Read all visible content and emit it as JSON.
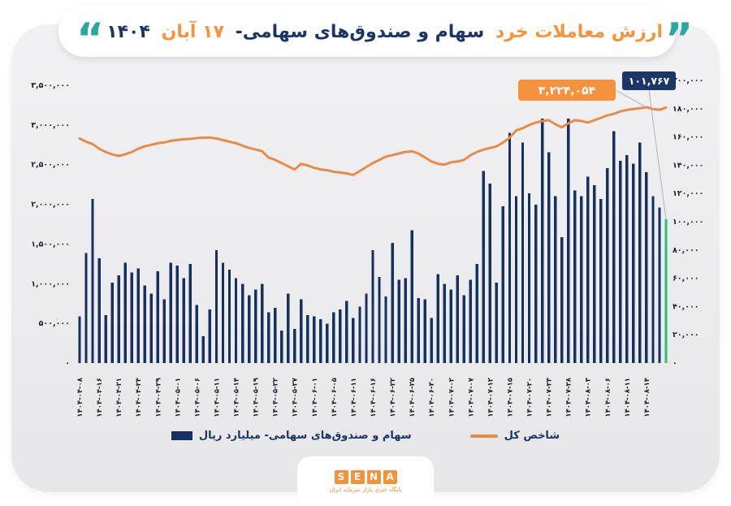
{
  "title": {
    "part1": "ارزش معاملات خرد",
    "part2": "سهام و صندوق‌های سهامی-",
    "part3": "۱۷ آبان",
    "part4": "۱۴۰۴"
  },
  "colors": {
    "bar": "#16305f",
    "last_bar": "#2abf72",
    "line": "#e78b45",
    "annotation_orange": "#f6923d",
    "annotation_navy": "#1b3767",
    "leader": "#b3b3b8",
    "tick_text": "#1d1d2b",
    "teal_quote": "#2ba89d",
    "title_orange": "#f7923c",
    "title_navy": "#1b3566"
  },
  "chart_data": {
    "type": "bar",
    "note": "dual-axis combo: bars = retail trade value (billion rial, right axis), line = total index (left axis)",
    "bar_series": {
      "name": "سهام و صندوق‌های سهامی- میلیارد ریال",
      "values": [
        33000,
        78000,
        116000,
        74000,
        34000,
        57000,
        62000,
        71000,
        64000,
        67000,
        55000,
        49000,
        65000,
        45000,
        71000,
        69000,
        60000,
        70000,
        41000,
        19000,
        38000,
        80000,
        71000,
        66000,
        60000,
        56000,
        48000,
        52000,
        56000,
        36000,
        39000,
        23000,
        49000,
        24000,
        45000,
        34000,
        33000,
        31000,
        28000,
        36000,
        38000,
        44000,
        32000,
        40000,
        49000,
        80000,
        61000,
        47000,
        85000,
        59000,
        60000,
        94000,
        46000,
        45000,
        32000,
        63000,
        56000,
        52000,
        62000,
        48000,
        59000,
        70000,
        136000,
        127000,
        57000,
        111000,
        163000,
        118000,
        156000,
        120000,
        112000,
        173000,
        149000,
        118000,
        89000,
        173000,
        122000,
        118000,
        132000,
        126000,
        116000,
        138000,
        164000,
        143000,
        147000,
        141000,
        156000,
        135000,
        118000,
        110000,
        101767
      ]
    },
    "line_series": {
      "name": "شاخص کل",
      "values": [
        2830000,
        2790000,
        2760000,
        2700000,
        2660000,
        2630000,
        2610000,
        2630000,
        2660000,
        2700000,
        2730000,
        2750000,
        2770000,
        2780000,
        2800000,
        2810000,
        2820000,
        2825000,
        2835000,
        2840000,
        2840000,
        2830000,
        2810000,
        2790000,
        2770000,
        2740000,
        2710000,
        2690000,
        2670000,
        2590000,
        2560000,
        2520000,
        2480000,
        2440000,
        2510000,
        2490000,
        2460000,
        2440000,
        2430000,
        2410000,
        2400000,
        2390000,
        2370000,
        2420000,
        2470000,
        2520000,
        2560000,
        2600000,
        2620000,
        2640000,
        2660000,
        2670000,
        2640000,
        2590000,
        2540000,
        2510000,
        2500000,
        2530000,
        2540000,
        2560000,
        2620000,
        2660000,
        2690000,
        2710000,
        2730000,
        2780000,
        2840000,
        2930000,
        2960000,
        3000000,
        3030000,
        3050000,
        3060000,
        3010000,
        2970000,
        3020000,
        3060000,
        3050000,
        3030000,
        3060000,
        3090000,
        3120000,
        3140000,
        3170000,
        3190000,
        3200000,
        3210000,
        3224054,
        3200000,
        3190000,
        3220000
      ]
    },
    "x_tick_labels": [
      "۱۴۰۴-۰۴-۰۸",
      "۱۴۰۴-۰۴-۱۶",
      "۱۴۰۴-۰۴-۲۱",
      "۱۴۰۴-۰۴-۲۴",
      "۱۴۰۴-۰۴-۲۹",
      "۱۴۰۴-۰۵-۰۱",
      "۱۴۰۴-۰۵-۰۶",
      "۱۴۰۴-۰۵-۱۱",
      "۱۴۰۴-۰۵-۱۴",
      "۱۴۰۴-۰۵-۱۹",
      "۱۴۰۴-۰۵-۲۲",
      "۱۴۰۴-۰۵-۲۷",
      "۱۴۰۴-۰۶-۰۱",
      "۱۴۰۴-۰۶-۰۵",
      "۱۴۰۴-۰۶-۱۱",
      "۱۴۰۴-۰۶-۱۶",
      "۱۴۰۴-۰۶-۲۲",
      "۱۴۰۴-۰۶-۲۵",
      "۱۴۰۴-۰۶-۳۰",
      "۱۴۰۴-۰۷-۰۲",
      "۱۴۰۴-۰۷-۰۷",
      "۱۴۰۴-۰۷-۱۲",
      "۱۴۰۴-۰۷-۱۵",
      "۱۴۰۴-۰۷-۲۰",
      "۱۴۰۴-۰۷-۲۳",
      "۱۴۰۴-۰۷-۲۸",
      "۱۴۰۴-۰۸-۰۳",
      "۱۴۰۴-۰۸-۰۶",
      "۱۴۰۴-۰۸-۱۱",
      "۱۴۰۴-۰۸-۱۴"
    ],
    "x_label_every_n_bars": 3,
    "left_axis": {
      "min": 0,
      "max": 3500000,
      "tick_labels_bottom_to_top": [
        "۰",
        "۵۰۰,۰۰۰",
        "۱,۰۰۰,۰۰۰",
        "۱,۵۰۰,۰۰۰",
        "۲,۰۰۰,۰۰۰",
        "۲,۵۰۰,۰۰۰",
        "۳,۰۰۰,۰۰۰",
        "۳,۵۰۰,۰۰۰"
      ]
    },
    "right_axis": {
      "min": 0,
      "max": 200000,
      "tick_labels_bottom_to_top": [
        "۰",
        "۲۰,۰۰۰",
        "۴۰,۰۰۰",
        "۶۰,۰۰۰",
        "۸۰,۰۰۰",
        "۱۰۰,۰۰۰",
        "۱۲۰,۰۰۰",
        "۱۴۰,۰۰۰",
        "۱۶۰,۰۰۰",
        "۱۸۰,۰۰۰",
        "۲۰۰,۰۰۰"
      ]
    },
    "annotations": [
      {
        "id": "index-peak",
        "text": "۳,۲۲۴,۰۵۴",
        "value": 3224054,
        "box_color": "#f6923d",
        "target": "line_point_87"
      },
      {
        "id": "last-bar",
        "text": "۱۰۱,۷۶۷",
        "value": 101767,
        "box_color": "#1b3767",
        "target": "bar_90"
      }
    ],
    "grid": false,
    "legend_position": "bottom"
  },
  "legend": {
    "items": [
      {
        "label": "سهام و صندوق‌های سهامی- میلیارد ریال",
        "swatch": "rect",
        "color": "#16305f"
      },
      {
        "label": "شاخص کل",
        "swatch": "line",
        "color": "#e78b45"
      }
    ]
  },
  "logo": {
    "letters": [
      "S",
      "E",
      "N",
      "A"
    ],
    "tagline": "پایگاه خبری بازار سرمایه ایران"
  },
  "quotes": {
    "left": "“",
    "right": "”"
  }
}
